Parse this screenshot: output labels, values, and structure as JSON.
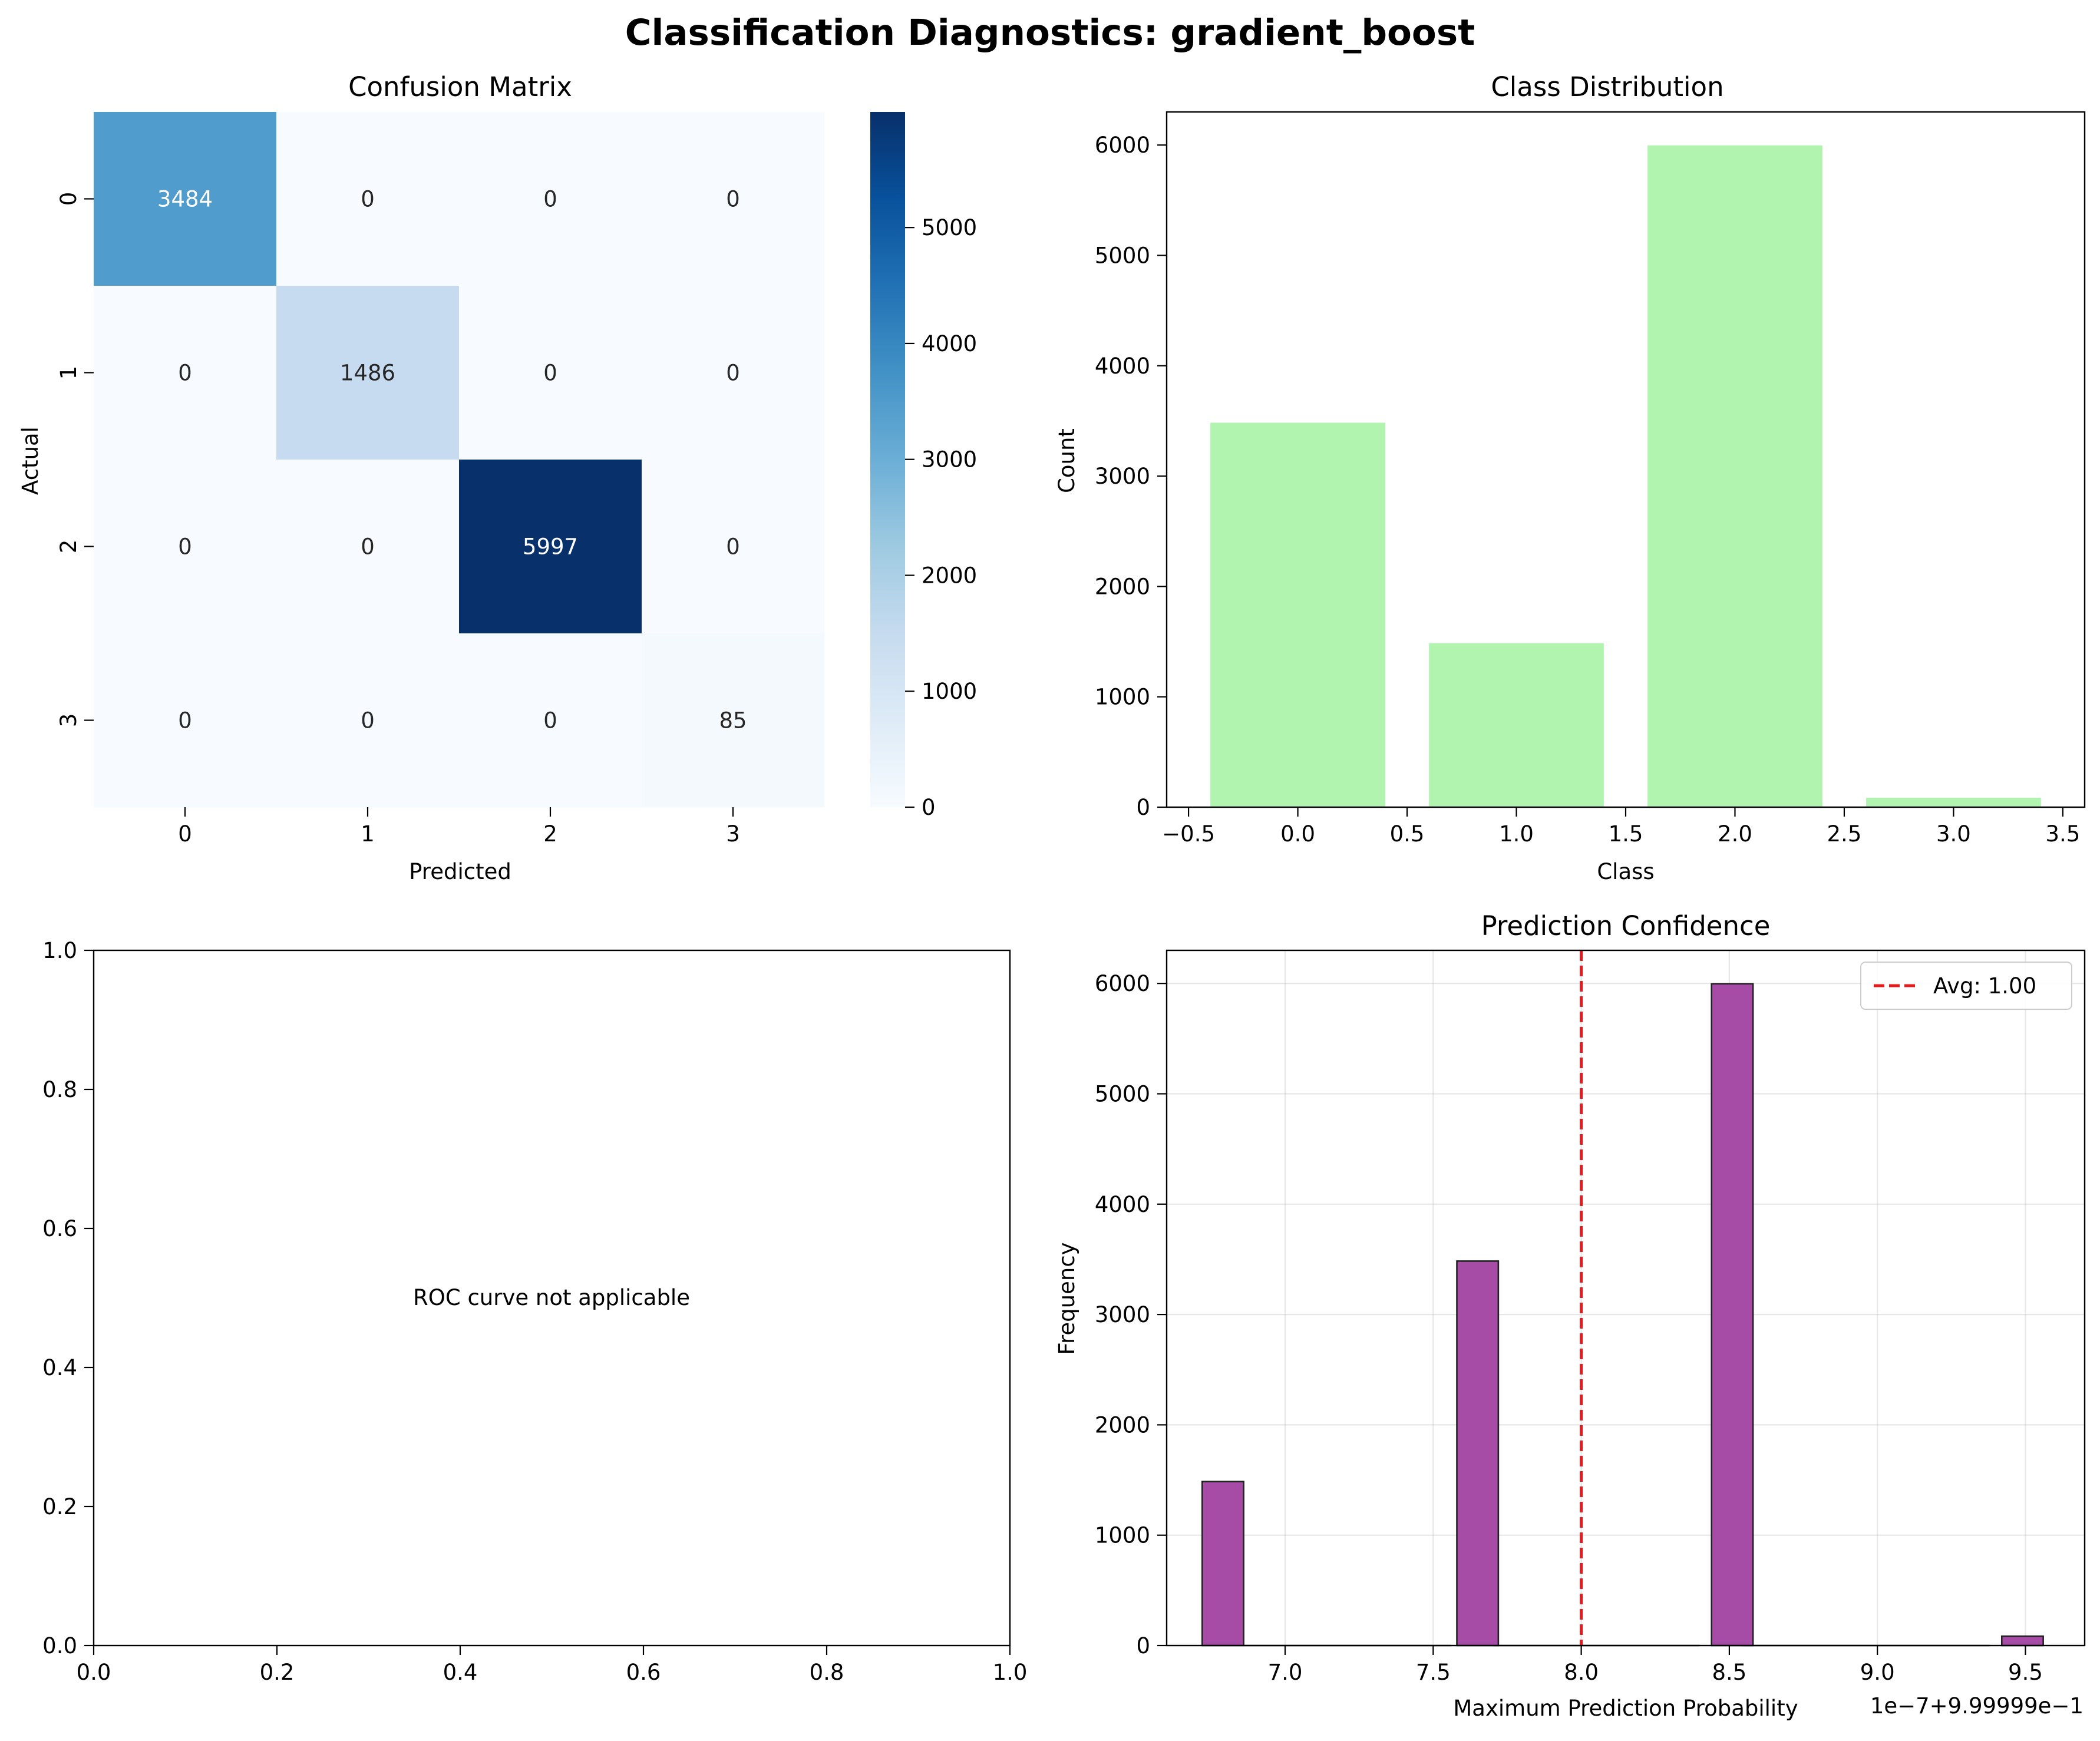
{
  "figure": {
    "suptitle": "Classification Diagnostics: gradient_boost"
  },
  "chart_data": [
    {
      "type": "heatmap",
      "title": "Confusion Matrix",
      "xlabel": "Predicted",
      "ylabel": "Actual",
      "x_categories": [
        "0",
        "1",
        "2",
        "3"
      ],
      "y_categories": [
        "0",
        "1",
        "2",
        "3"
      ],
      "matrix": [
        [
          3484,
          0,
          0,
          0
        ],
        [
          0,
          1486,
          0,
          0
        ],
        [
          0,
          0,
          5997,
          0
        ],
        [
          0,
          0,
          0,
          85
        ]
      ],
      "colormap": "Blues",
      "colorbar_ticks": [
        0,
        1000,
        2000,
        3000,
        4000,
        5000
      ],
      "colorbar_range": [
        0,
        5997
      ]
    },
    {
      "type": "bar",
      "title": "Class Distribution",
      "xlabel": "Class",
      "ylabel": "Count",
      "x": [
        0,
        1,
        2,
        3
      ],
      "values": [
        3484,
        1486,
        5997,
        85
      ],
      "bar_width": 0.8,
      "color": "#b0f4b0",
      "xlim": [
        -0.6,
        3.6
      ],
      "ylim": [
        0,
        6300
      ],
      "xticks": [
        "−0.5",
        "0.0",
        "0.5",
        "1.0",
        "1.5",
        "2.0",
        "2.5",
        "3.0",
        "3.5"
      ],
      "yticks": [
        "0",
        "1000",
        "2000",
        "3000",
        "4000",
        "5000",
        "6000"
      ]
    },
    {
      "type": "scatter",
      "title": "",
      "xlabel": "",
      "ylabel": "",
      "xlim": [
        0,
        1
      ],
      "ylim": [
        0,
        1
      ],
      "xticks": [
        "0.0",
        "0.2",
        "0.4",
        "0.6",
        "0.8",
        "1.0"
      ],
      "yticks": [
        "0.0",
        "0.2",
        "0.4",
        "0.6",
        "0.8",
        "1.0"
      ],
      "annotation": "ROC curve not applicable"
    },
    {
      "type": "bar",
      "title": "Prediction Confidence",
      "xlabel": "Maximum Prediction Probability",
      "ylabel": "Frequency",
      "offset_label": "1e−7+9.99999e−1",
      "bins": [
        {
          "start": 6.72,
          "end": 6.86,
          "count": 1486
        },
        {
          "start": 7.58,
          "end": 7.72,
          "count": 3484
        },
        {
          "start": 8.44,
          "end": 8.58,
          "count": 5997
        },
        {
          "start": 9.42,
          "end": 9.56,
          "count": 85
        }
      ],
      "color": "#a64ca6",
      "edge_color": "#222222",
      "xlim": [
        6.6,
        9.7
      ],
      "ylim": [
        0,
        6300
      ],
      "xticks": [
        "7.0",
        "7.5",
        "8.0",
        "8.5",
        "9.0",
        "9.5"
      ],
      "yticks": [
        "0",
        "1000",
        "2000",
        "3000",
        "4000",
        "5000",
        "6000"
      ],
      "grid": true,
      "mean_line": {
        "x": 8.0,
        "label": "Avg: 1.00",
        "color": "#e41a1c"
      },
      "legend_position": "top-right"
    }
  ]
}
